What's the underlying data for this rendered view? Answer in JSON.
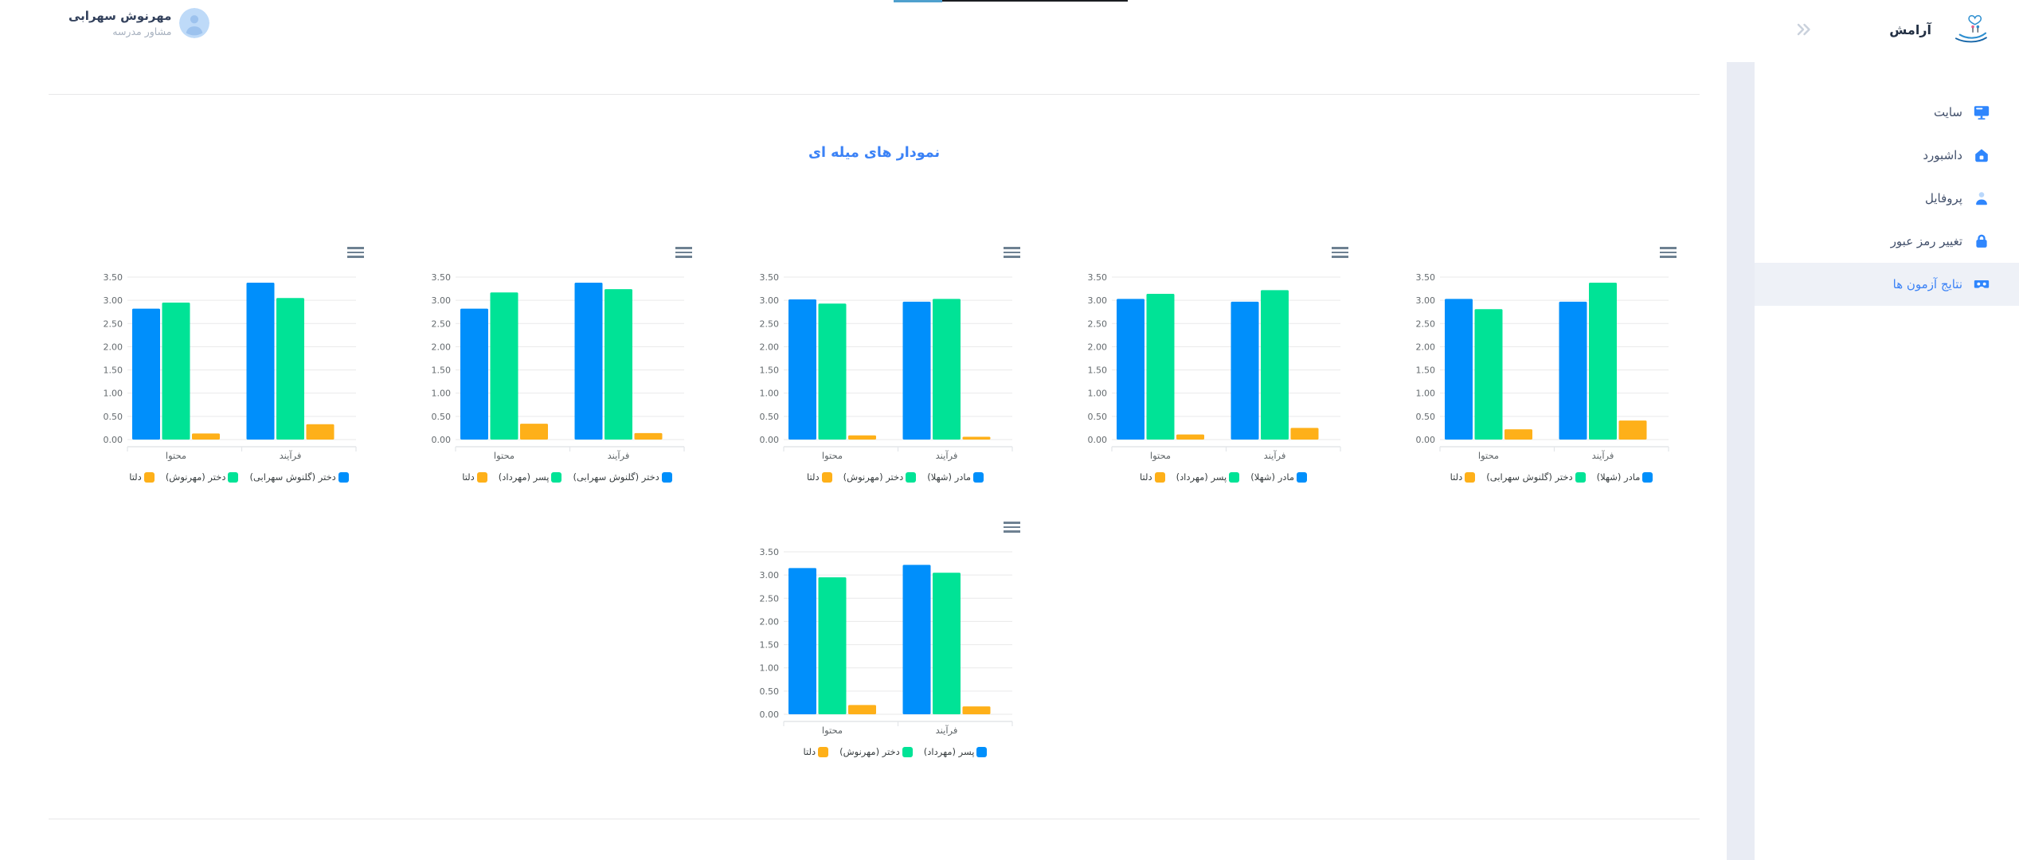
{
  "profile": {
    "name": "مهرنوش سهرابی",
    "role": "مشاور مدرسه"
  },
  "sidebar": {
    "brand": "آرامش",
    "items": [
      {
        "id": "site",
        "label": "سایت",
        "icon": "monitor-icon",
        "active": false
      },
      {
        "id": "dashboard",
        "label": "داشبورد",
        "icon": "home-icon",
        "active": false
      },
      {
        "id": "profile",
        "label": "پروفایل",
        "icon": "user-icon",
        "active": false
      },
      {
        "id": "change-password",
        "label": "تغییر رمز عبور",
        "icon": "lock-icon",
        "active": false
      },
      {
        "id": "test-results",
        "label": "نتایج آزمون ها",
        "icon": "vr-goggles-icon",
        "active": true
      }
    ]
  },
  "main": {
    "section_title": "نمودار های میله ای"
  },
  "colors": {
    "accent_blue": "#3b82f6",
    "sidebar_icon_blue": "#2f86fd",
    "active_item_bg": "#eef1f7",
    "bar_blue": "#008FFB",
    "bar_green": "#00E396",
    "bar_orange": "#FEB019",
    "grid_line": "#e9e9ea",
    "axis_text": "#646a6e",
    "legend_text": "#373d3f",
    "menu_icon_gray": "#6E8192",
    "divider": "#e7e7e9",
    "gap_strip": "#e9ecf4",
    "top_edge_blue": "#4fa0ce",
    "top_edge_dark": "#1b1d21"
  },
  "chart_data": [
    {
      "type": "bar",
      "categories": [
        "محتوا",
        "فرآیند"
      ],
      "ylim": [
        0,
        3.5
      ],
      "ytick_step": 0.5,
      "yticks": [
        "0.00",
        "0.50",
        "1.00",
        "1.50",
        "2.00",
        "2.50",
        "3.00",
        "3.50"
      ],
      "grid": true,
      "legend_position": "bottom",
      "series": [
        {
          "name": "دختر (گلنوش سهرابی)",
          "color": "#008FFB",
          "values": [
            2.82,
            3.38
          ]
        },
        {
          "name": "دختر (مهرنوش)",
          "color": "#00E396",
          "values": [
            2.95,
            3.05
          ]
        },
        {
          "name": "دلتا",
          "color": "#FEB019",
          "values": [
            0.13,
            0.33
          ]
        }
      ]
    },
    {
      "type": "bar",
      "categories": [
        "محتوا",
        "فرآیند"
      ],
      "ylim": [
        0,
        3.5
      ],
      "ytick_step": 0.5,
      "yticks": [
        "0.00",
        "0.50",
        "1.00",
        "1.50",
        "2.00",
        "2.50",
        "3.00",
        "3.50"
      ],
      "grid": true,
      "legend_position": "bottom",
      "series": [
        {
          "name": "دختر (گلنوش سهرابی)",
          "color": "#008FFB",
          "values": [
            2.82,
            3.38
          ]
        },
        {
          "name": "پسر (مهرداد)",
          "color": "#00E396",
          "values": [
            3.17,
            3.24
          ]
        },
        {
          "name": "دلتا",
          "color": "#FEB019",
          "values": [
            0.34,
            0.14
          ]
        }
      ]
    },
    {
      "type": "bar",
      "categories": [
        "محتوا",
        "فرآیند"
      ],
      "ylim": [
        0,
        3.5
      ],
      "ytick_step": 0.5,
      "yticks": [
        "0.00",
        "0.50",
        "1.00",
        "1.50",
        "2.00",
        "2.50",
        "3.00",
        "3.50"
      ],
      "grid": true,
      "legend_position": "bottom",
      "series": [
        {
          "name": "مادر (شهلا)",
          "color": "#008FFB",
          "values": [
            3.02,
            2.97
          ]
        },
        {
          "name": "دختر (مهرنوش)",
          "color": "#00E396",
          "values": [
            2.93,
            3.03
          ]
        },
        {
          "name": "دلتا",
          "color": "#FEB019",
          "values": [
            0.09,
            0.06
          ]
        }
      ]
    },
    {
      "type": "bar",
      "categories": [
        "محتوا",
        "فرآیند"
      ],
      "ylim": [
        0,
        3.5
      ],
      "ytick_step": 0.5,
      "yticks": [
        "0.00",
        "0.50",
        "1.00",
        "1.50",
        "2.00",
        "2.50",
        "3.00",
        "3.50"
      ],
      "grid": true,
      "legend_position": "bottom",
      "series": [
        {
          "name": "مادر (شهلا)",
          "color": "#008FFB",
          "values": [
            3.03,
            2.97
          ]
        },
        {
          "name": "پسر (مهرداد)",
          "color": "#00E396",
          "values": [
            3.14,
            3.22
          ]
        },
        {
          "name": "دلتا",
          "color": "#FEB019",
          "values": [
            0.11,
            0.25
          ]
        }
      ]
    },
    {
      "type": "bar",
      "categories": [
        "محتوا",
        "فرآیند"
      ],
      "ylim": [
        0,
        3.5
      ],
      "ytick_step": 0.5,
      "yticks": [
        "0.00",
        "0.50",
        "1.00",
        "1.50",
        "2.00",
        "2.50",
        "3.00",
        "3.50"
      ],
      "grid": true,
      "legend_position": "bottom",
      "series": [
        {
          "name": "مادر (شهلا)",
          "color": "#008FFB",
          "values": [
            3.03,
            2.97
          ]
        },
        {
          "name": "دختر (گلنوش سهرابی)",
          "color": "#00E396",
          "values": [
            2.81,
            3.38
          ]
        },
        {
          "name": "دلتا",
          "color": "#FEB019",
          "values": [
            0.22,
            0.41
          ]
        }
      ]
    },
    {
      "type": "bar",
      "categories": [
        "محتوا",
        "فرآیند"
      ],
      "ylim": [
        0,
        3.5
      ],
      "ytick_step": 0.5,
      "yticks": [
        "0.00",
        "0.50",
        "1.00",
        "1.50",
        "2.00",
        "2.50",
        "3.00",
        "3.50"
      ],
      "grid": true,
      "legend_position": "bottom",
      "series": [
        {
          "name": "پسر (مهرداد)",
          "color": "#008FFB",
          "values": [
            3.15,
            3.22
          ]
        },
        {
          "name": "دختر (مهرنوش)",
          "color": "#00E396",
          "values": [
            2.95,
            3.05
          ]
        },
        {
          "name": "دلتا",
          "color": "#FEB019",
          "values": [
            0.2,
            0.17
          ]
        }
      ]
    }
  ]
}
